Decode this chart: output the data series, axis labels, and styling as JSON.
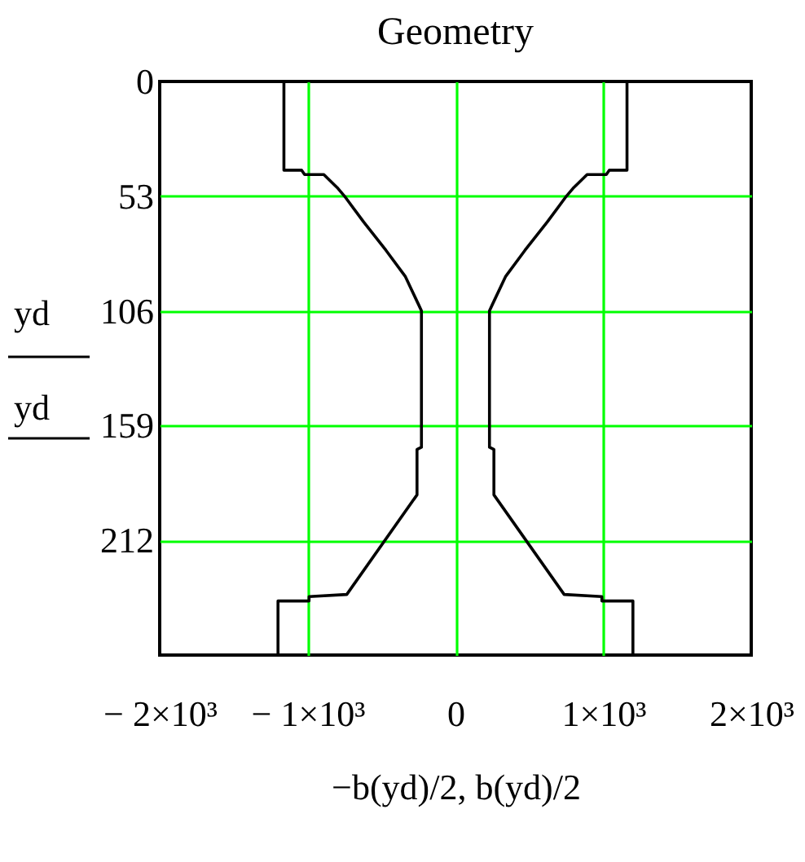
{
  "chart_data": {
    "type": "line",
    "title": "Geometry",
    "xlabel": "−b(yd)/2, b(yd)/2",
    "ylabel": "yd\nyd",
    "xlim": [
      -2000,
      2000
    ],
    "xticks": [
      {
        "value": -2000,
        "label": "− 2×10³"
      },
      {
        "value": -1000,
        "label": "− 1×10³"
      },
      0,
      {
        "value": 1000,
        "label": "1×10³"
      },
      {
        "value": 2000,
        "label": "2×10³"
      }
    ],
    "ylim": [
      265,
      0
    ],
    "yticks": [
      0,
      53,
      106,
      159,
      212
    ],
    "grid": true,
    "series": [
      {
        "color": "#000000",
        "x": [
          -1160,
          -1160,
          -1040,
          -1020,
          -890,
          -800,
          -750,
          -620,
          -470,
          -340,
          -250,
          -230,
          -230,
          -260,
          -260,
          -735,
          -990,
          -990,
          -1200,
          -1200
        ],
        "values": [
          0,
          41,
          41,
          43,
          43,
          49,
          53,
          65,
          78,
          90,
          103,
          106,
          169,
          170,
          191,
          237,
          238,
          240,
          240,
          265
        ]
      },
      {
        "color": "#000000",
        "x": [
          1160,
          1160,
          1040,
          1020,
          890,
          800,
          750,
          620,
          470,
          340,
          250,
          230,
          230,
          260,
          260,
          735,
          990,
          990,
          1200,
          1200
        ],
        "values": [
          0,
          41,
          41,
          43,
          43,
          49,
          53,
          65,
          78,
          90,
          103,
          106,
          169,
          170,
          191,
          237,
          238,
          240,
          240,
          265
        ]
      }
    ]
  }
}
